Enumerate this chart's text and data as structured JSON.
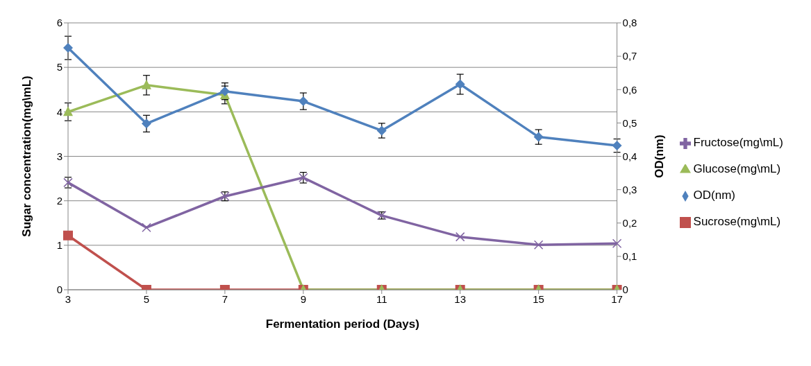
{
  "chart_data": {
    "type": "line",
    "xlabel": "Fermentation period (Days)",
    "ylabel": "Sugar concentration(mg\\mL)",
    "y2label": "OD(nm)",
    "categories": [
      "3",
      "5",
      "7",
      "9",
      "11",
      "13",
      "15",
      "17"
    ],
    "series": [
      {
        "name": "Sucrose(mg\\mL)",
        "color": "#c0504d",
        "marker": "square",
        "values": [
          1.22,
          0,
          0,
          0,
          0,
          0,
          0,
          0
        ]
      },
      {
        "name": "Glucose(mg\\mL)",
        "color": "#9bbb59",
        "marker": "triangle",
        "values": [
          4.0,
          4.6,
          4.38,
          0,
          0,
          0,
          0,
          0
        ],
        "errors": [
          0.2,
          0.22,
          0.2,
          null,
          null,
          null,
          null,
          null
        ]
      },
      {
        "name": "Fructose(mg\\mL)",
        "color": "#8064a2",
        "marker": "cross",
        "values": [
          2.41,
          1.4,
          2.1,
          2.52,
          1.67,
          1.19,
          1.01,
          1.04
        ],
        "errors": [
          0.12,
          null,
          0.1,
          0.12,
          0.08,
          null,
          null,
          null
        ]
      },
      {
        "name": "OD(nm)",
        "color": "#4f81bd",
        "marker": "diamond",
        "axis": "y2",
        "values": [
          0.725,
          0.498,
          0.595,
          0.565,
          0.477,
          0.616,
          0.458,
          0.432
        ],
        "errors": [
          0.035,
          0.025,
          0.025,
          0.025,
          0.022,
          0.03,
          0.022,
          0.02
        ]
      }
    ],
    "ylim": [
      0,
      6
    ],
    "yticks": [
      0,
      1,
      2,
      3,
      4,
      5,
      6
    ],
    "y2lim": [
      0,
      0.8
    ],
    "y2ticks": [
      0,
      {
        "value": 0.1,
        "label": "0,1"
      },
      {
        "value": 0.2,
        "label": "0,2"
      },
      {
        "value": 0.3,
        "label": "0,3"
      },
      {
        "value": 0.4,
        "label": "0,4"
      },
      {
        "value": 0.5,
        "label": "0,5"
      },
      {
        "value": 0.6,
        "label": "0,6"
      },
      {
        "value": 0.7,
        "label": "0,7"
      },
      {
        "value": 0.8,
        "label": "0,8"
      }
    ],
    "grid": "y",
    "legend": "right",
    "line_style": "solid"
  }
}
